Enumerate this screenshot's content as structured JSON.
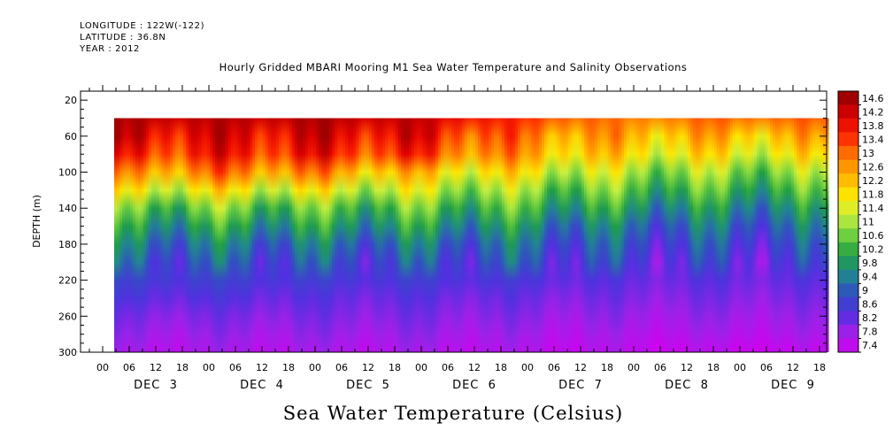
{
  "header": {
    "longitude": "LONGITUDE : 122W(-122)",
    "latitude": "LATITUDE : 36.8N",
    "year": "YEAR : 2012"
  },
  "chart_data": {
    "type": "heatmap",
    "title": "Hourly Gridded MBARI Mooring M1 Sea Water Temperature and Salinity Observations",
    "xlabel": "Sea Water Temperature (Celsius)",
    "ylabel": "DEPTH (m)",
    "ylim": [
      300,
      0
    ],
    "y_ticks": [
      20,
      60,
      100,
      140,
      180,
      220,
      260,
      300
    ],
    "x_hour_ticks": [
      "00",
      "06",
      "12",
      "18",
      "00",
      "06",
      "12",
      "18",
      "00",
      "06",
      "12",
      "18",
      "00",
      "06",
      "12",
      "18",
      "00",
      "06",
      "12",
      "18",
      "00",
      "06",
      "12",
      "18",
      "00",
      "06",
      "12",
      "18"
    ],
    "x_day_labels": [
      "DEC  3",
      "DEC  4",
      "DEC  5",
      "DEC  6",
      "DEC  7",
      "DEC  8",
      "DEC  9"
    ],
    "colorbar_levels": [
      "14.6",
      "14.2",
      "13.8",
      "13.4",
      "13",
      "12.6",
      "12.2",
      "11.8",
      "11.4",
      "11",
      "10.6",
      "10.2",
      "9.8",
      "9.4",
      "9",
      "8.6",
      "8.2",
      "7.8",
      "7.4"
    ],
    "color_ramp": [
      "#a00000",
      "#e00000",
      "#ff2a00",
      "#ff7a00",
      "#ffb000",
      "#ffe800",
      "#c8f040",
      "#70d040",
      "#20a040",
      "#208890",
      "#3050c0",
      "#5030e0",
      "#a020e8",
      "#d000f0"
    ],
    "missing_data_color": "#ffffff",
    "data_gap_depth_m": [
      10,
      40
    ],
    "surface_layer_temp_c": 14.6,
    "profile_depths_m": [
      40,
      60,
      80,
      100,
      120,
      140,
      160,
      180,
      200,
      220,
      240,
      260,
      280,
      300
    ],
    "profiles": [
      {
        "day": "DEC 3",
        "temps": [
          14.6,
          14.2,
          13.6,
          12.6,
          11.6,
          10.6,
          10.0,
          9.5,
          9.1,
          8.8,
          8.5,
          8.2,
          8.0,
          7.8
        ]
      },
      {
        "day": "DEC 4",
        "temps": [
          14.5,
          14.1,
          13.8,
          13.0,
          11.8,
          10.8,
          10.1,
          9.5,
          9.1,
          8.8,
          8.5,
          8.2,
          8.0,
          7.8
        ]
      },
      {
        "day": "DEC 5",
        "temps": [
          14.6,
          14.2,
          13.8,
          12.8,
          11.6,
          10.6,
          10.0,
          9.4,
          9.0,
          8.7,
          8.4,
          8.2,
          8.0,
          7.8
        ]
      },
      {
        "day": "DEC 6",
        "temps": [
          14.4,
          14.0,
          13.5,
          12.2,
          11.4,
          10.6,
          10.0,
          9.4,
          9.0,
          8.7,
          8.4,
          8.2,
          8.0,
          7.8
        ]
      },
      {
        "day": "DEC 7",
        "temps": [
          13.6,
          13.0,
          12.6,
          11.8,
          11.0,
          10.4,
          9.8,
          9.3,
          9.0,
          8.6,
          8.3,
          8.1,
          7.9,
          7.7
        ]
      },
      {
        "day": "DEC 8",
        "temps": [
          13.0,
          12.5,
          12.0,
          11.2,
          10.6,
          10.0,
          9.4,
          9.0,
          8.7,
          8.4,
          8.2,
          8.0,
          7.8,
          7.6
        ]
      },
      {
        "day": "DEC 9",
        "temps": [
          13.2,
          12.4,
          11.8,
          11.0,
          10.4,
          9.8,
          9.3,
          8.9,
          8.6,
          8.4,
          8.2,
          8.0,
          7.8,
          7.5
        ]
      }
    ]
  }
}
